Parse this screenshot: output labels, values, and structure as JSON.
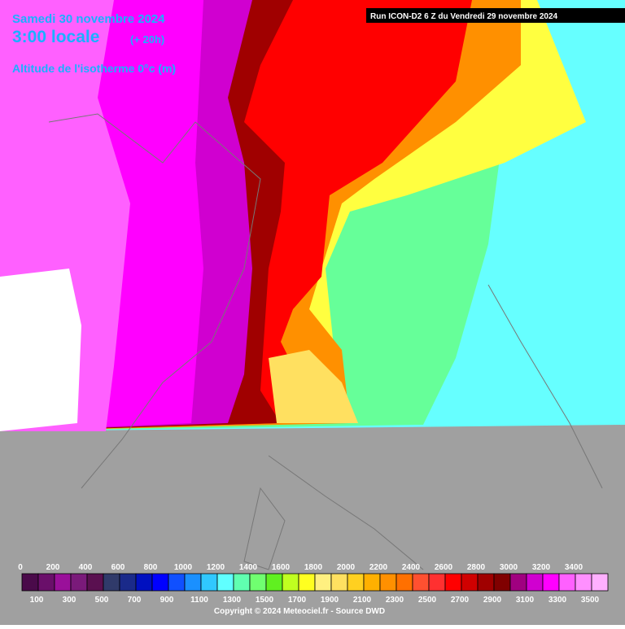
{
  "header": {
    "date": "Samedi 30 novembre 2024",
    "time": "3:00 locale",
    "lead": "(+ 20h)",
    "parameter": "Altitude de l'isotherme 0°c (m)",
    "run": "Run ICON-D2 6 Z du Vendredi 29 novembre 2024"
  },
  "legend": {
    "ticks": [
      0,
      100,
      200,
      300,
      400,
      500,
      600,
      700,
      800,
      900,
      1000,
      1100,
      1200,
      1300,
      1400,
      1500,
      1600,
      1700,
      1800,
      1900,
      2000,
      2100,
      2200,
      2300,
      2400,
      2500,
      2600,
      2700,
      2800,
      2900,
      3000,
      3100,
      3200,
      3300,
      3400,
      3500
    ],
    "colors": [
      "#4a0a4a",
      "#6a0f6a",
      "#9a109a",
      "#7a1a7a",
      "#5a1050",
      "#303a6a",
      "#1a2a8a",
      "#0010c0",
      "#0000ff",
      "#1050ff",
      "#1a90ff",
      "#30c8ff",
      "#60ffff",
      "#60ffb0",
      "#70ff70",
      "#60f020",
      "#c0ff20",
      "#ffff20",
      "#fff080",
      "#ffe060",
      "#ffd020",
      "#ffb000",
      "#ff9000",
      "#ff7000",
      "#ff5030",
      "#ff3030",
      "#ff0000",
      "#d00000",
      "#a00000",
      "#800000",
      "#a00080",
      "#d000d0",
      "#ff00ff",
      "#ff60ff",
      "#ff90ff",
      "#ffb0ff"
    ]
  },
  "footer": {
    "copyright": "Copyright © 2024 Meteociel.fr - Source DWD"
  }
}
